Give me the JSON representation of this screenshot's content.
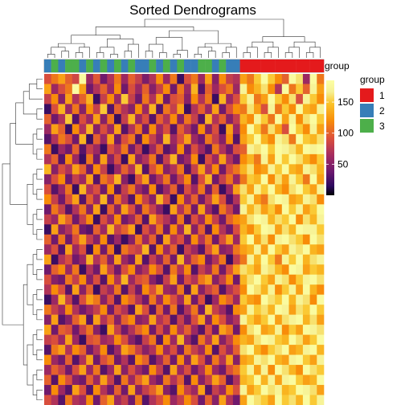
{
  "chart_data": {
    "type": "heatmap",
    "title": "Sorted Dendrograms",
    "n_rows": 33,
    "n_cols": 40,
    "column_annotation": {
      "name": "group",
      "values": [
        2,
        3,
        2,
        3,
        3,
        2,
        3,
        2,
        3,
        2,
        3,
        2,
        3,
        2,
        2,
        3,
        2,
        3,
        2,
        3,
        2,
        2,
        3,
        3,
        2,
        3,
        2,
        2,
        1,
        1,
        1,
        1,
        1,
        1,
        1,
        1,
        1,
        1,
        1,
        1
      ]
    },
    "legend": {
      "title": "group",
      "entries": [
        {
          "label": "1",
          "color": "#e41a1c"
        },
        {
          "label": "2",
          "color": "#377eb8"
        },
        {
          "label": "3",
          "color": "#4daf4a"
        }
      ]
    },
    "colorbar": {
      "ticks": [
        "150",
        "100",
        "50"
      ],
      "tick_values": [
        150,
        100,
        50
      ],
      "range": [
        0,
        185
      ],
      "colormap": "inferno"
    },
    "values": [
      [
        90,
        110,
        130,
        100,
        85,
        180,
        60,
        95,
        40,
        70,
        110,
        60,
        100,
        80,
        45,
        70,
        120,
        60,
        110,
        20,
        90,
        110,
        60,
        130,
        50,
        120,
        80,
        70,
        130,
        110,
        150,
        180,
        150,
        120,
        100,
        180,
        160,
        60,
        180,
        110
      ],
      [
        130,
        60,
        90,
        110,
        180,
        130,
        40,
        70,
        100,
        60,
        120,
        40,
        90,
        60,
        100,
        50,
        80,
        120,
        40,
        110,
        60,
        140,
        30,
        100,
        60,
        90,
        110,
        60,
        170,
        120,
        140,
        160,
        120,
        70,
        180,
        110,
        150,
        100,
        170,
        130
      ],
      [
        80,
        120,
        50,
        130,
        70,
        100,
        140,
        20,
        80,
        120,
        60,
        150,
        80,
        40,
        110,
        70,
        130,
        40,
        90,
        100,
        50,
        120,
        70,
        110,
        20,
        140,
        60,
        90,
        150,
        170,
        110,
        130,
        180,
        150,
        120,
        160,
        90,
        170,
        150,
        120
      ],
      [
        20,
        90,
        140,
        60,
        110,
        50,
        120,
        80,
        150,
        30,
        100,
        70,
        50,
        120,
        60,
        140,
        30,
        110,
        80,
        130,
        20,
        70,
        100,
        60,
        130,
        40,
        90,
        120,
        110,
        160,
        130,
        90,
        170,
        110,
        150,
        120,
        180,
        140,
        130,
        170
      ],
      [
        100,
        40,
        70,
        150,
        30,
        90,
        60,
        130,
        50,
        110,
        20,
        80,
        140,
        60,
        90,
        30,
        100,
        70,
        120,
        50,
        110,
        80,
        30,
        140,
        70,
        100,
        50,
        80,
        140,
        120,
        170,
        150,
        110,
        180,
        130,
        170,
        120,
        160,
        180,
        150
      ],
      [
        60,
        130,
        100,
        20,
        120,
        70,
        140,
        50,
        90,
        60,
        130,
        30,
        70,
        110,
        40,
        120,
        60,
        90,
        30,
        100,
        70,
        40,
        120,
        50,
        90,
        20,
        130,
        60,
        120,
        180,
        150,
        110,
        160,
        130,
        90,
        180,
        150,
        120,
        170,
        130
      ],
      [
        30,
        70,
        110,
        90,
        40,
        140,
        20,
        100,
        60,
        130,
        40,
        90,
        110,
        30,
        120,
        80,
        50,
        140,
        60,
        90,
        130,
        60,
        40,
        110,
        80,
        50,
        120,
        30,
        130,
        150,
        180,
        140,
        120,
        170,
        160,
        110,
        180,
        150,
        140,
        160
      ],
      [
        110,
        20,
        60,
        40,
        100,
        30,
        80,
        60,
        20,
        90,
        70,
        110,
        40,
        80,
        20,
        60,
        100,
        30,
        50,
        120,
        40,
        90,
        60,
        30,
        110,
        70,
        40,
        90,
        100,
        170,
        160,
        180,
        150,
        180,
        170,
        160,
        140,
        180,
        170,
        180
      ],
      [
        70,
        100,
        30,
        120,
        60,
        20,
        110,
        40,
        130,
        50,
        90,
        20,
        130,
        50,
        70,
        110,
        30,
        80,
        140,
        40,
        60,
        120,
        20,
        90,
        60,
        130,
        70,
        40,
        120,
        140,
        110,
        170,
        130,
        180,
        150,
        180,
        160,
        140,
        120,
        150
      ],
      [
        140,
        50,
        90,
        70,
        130,
        100,
        40,
        120,
        80,
        20,
        60,
        100,
        70,
        140,
        30,
        90,
        120,
        50,
        70,
        110,
        30,
        80,
        130,
        70,
        120,
        40,
        90,
        110,
        140,
        160,
        120,
        130,
        170,
        150,
        180,
        140,
        130,
        170,
        160,
        140
      ],
      [
        50,
        90,
        120,
        40,
        80,
        60,
        130,
        30,
        110,
        90,
        140,
        50,
        20,
        90,
        130,
        40,
        70,
        110,
        40,
        80,
        120,
        30,
        90,
        140,
        40,
        80,
        110,
        60,
        110,
        150,
        140,
        180,
        120,
        160,
        130,
        170,
        150,
        110,
        180,
        130
      ],
      [
        90,
        30,
        60,
        110,
        20,
        140,
        70,
        90,
        40,
        120,
        30,
        80,
        110,
        60,
        40,
        120,
        30,
        60,
        100,
        30,
        90,
        60,
        110,
        40,
        100,
        20,
        60,
        130,
        160,
        130,
        170,
        150,
        180,
        140,
        120,
        160,
        180,
        150,
        130,
        170
      ],
      [
        120,
        80,
        40,
        90,
        130,
        30,
        100,
        60,
        140,
        40,
        110,
        70,
        30,
        120,
        80,
        50,
        140,
        90,
        20,
        120,
        60,
        100,
        40,
        80,
        130,
        90,
        30,
        70,
        150,
        170,
        130,
        110,
        160,
        180,
        170,
        130,
        140,
        170,
        160,
        120
      ],
      [
        40,
        110,
        80,
        30,
        70,
        110,
        50,
        130,
        20,
        100,
        50,
        130,
        90,
        40,
        110,
        80,
        50,
        20,
        130,
        70,
        110,
        40,
        130,
        60,
        30,
        110,
        80,
        40,
        170,
        140,
        160,
        130,
        150,
        120,
        180,
        150,
        170,
        130,
        150,
        180
      ],
      [
        80,
        60,
        130,
        100,
        40,
        80,
        120,
        20,
        90,
        60,
        120,
        40,
        60,
        100,
        30,
        130,
        90,
        70,
        40,
        110,
        30,
        90,
        60,
        120,
        80,
        40,
        100,
        120,
        130,
        160,
        180,
        170,
        140,
        160,
        150,
        180,
        120,
        160,
        140,
        170
      ],
      [
        20,
        130,
        50,
        70,
        110,
        40,
        30,
        100,
        60,
        140,
        80,
        100,
        130,
        20,
        90,
        60,
        110,
        40,
        120,
        60,
        140,
        50,
        100,
        30,
        120,
        70,
        40,
        90,
        140,
        120,
        150,
        180,
        170,
        130,
        160,
        140,
        180,
        170,
        170,
        150
      ],
      [
        100,
        40,
        110,
        40,
        90,
        130,
        80,
        50,
        120,
        30,
        60,
        20,
        50,
        110,
        60,
        100,
        30,
        130,
        70,
        90,
        40,
        120,
        70,
        110,
        40,
        90,
        130,
        60,
        150,
        180,
        130,
        160,
        120,
        170,
        180,
        160,
        150,
        120,
        180,
        160
      ],
      [
        60,
        90,
        30,
        130,
        60,
        90,
        20,
        120,
        40,
        110,
        20,
        110,
        90,
        80,
        140,
        30,
        120,
        60,
        100,
        20,
        80,
        60,
        30,
        90,
        130,
        50,
        60,
        110,
        130,
        140,
        170,
        130,
        180,
        150,
        130,
        170,
        160,
        180,
        140,
        130
      ],
      [
        130,
        20,
        70,
        90,
        40,
        60,
        140,
        70,
        100,
        50,
        130,
        60,
        40,
        130,
        30,
        80,
        50,
        100,
        40,
        140,
        60,
        100,
        120,
        40,
        70,
        110,
        20,
        80,
        110,
        170,
        140,
        180,
        150,
        110,
        170,
        150,
        180,
        140,
        160,
        170
      ],
      [
        40,
        100,
        120,
        60,
        110,
        20,
        70,
        40,
        130,
        80,
        40,
        90,
        120,
        50,
        70,
        120,
        90,
        30,
        110,
        70,
        120,
        30,
        80,
        60,
        110,
        40,
        90,
        130,
        160,
        150,
        130,
        170,
        160,
        140,
        120,
        180,
        170,
        130,
        150,
        140
      ],
      [
        90,
        50,
        40,
        110,
        80,
        120,
        50,
        90,
        30,
        120,
        70,
        140,
        60,
        90,
        100,
        50,
        30,
        80,
        130,
        40,
        90,
        70,
        110,
        130,
        50,
        80,
        120,
        40,
        140,
        160,
        180,
        150,
        130,
        170,
        160,
        120,
        150,
        170,
        180,
        160
      ],
      [
        70,
        120,
        90,
        30,
        130,
        50,
        100,
        20,
        80,
        60,
        110,
        30,
        80,
        40,
        120,
        90,
        130,
        60,
        50,
        110,
        30,
        130,
        50,
        80,
        100,
        30,
        70,
        90,
        120,
        180,
        160,
        140,
        170,
        120,
        150,
        170,
        130,
        180,
        140,
        120
      ],
      [
        20,
        60,
        140,
        80,
        30,
        90,
        130,
        110,
        50,
        90,
        30,
        120,
        100,
        70,
        40,
        110,
        60,
        120,
        90,
        60,
        130,
        40,
        90,
        20,
        60,
        120,
        100,
        60,
        150,
        130,
        120,
        180,
        160,
        150,
        180,
        140,
        170,
        160,
        120,
        180
      ],
      [
        110,
        80,
        60,
        120,
        70,
        40,
        60,
        80,
        120,
        40,
        90,
        70,
        30,
        130,
        90,
        30,
        100,
        40,
        110,
        30,
        70,
        110,
        40,
        140,
        80,
        60,
        30,
        120,
        130,
        170,
        150,
        160,
        140,
        180,
        170,
        130,
        160,
        150,
        180,
        150
      ],
      [
        50,
        130,
        30,
        50,
        100,
        130,
        30,
        130,
        70,
        100,
        50,
        100,
        120,
        50,
        60,
        130,
        70,
        90,
        30,
        80,
        40,
        90,
        130,
        50,
        120,
        90,
        50,
        70,
        170,
        150,
        130,
        150,
        180,
        130,
        160,
        170,
        180,
        140,
        160,
        130
      ],
      [
        130,
        40,
        100,
        90,
        40,
        80,
        110,
        50,
        20,
        130,
        80,
        40,
        70,
        100,
        120,
        40,
        90,
        50,
        120,
        70,
        100,
        60,
        30,
        90,
        40,
        130,
        110,
        40,
        120,
        160,
        180,
        130,
        140,
        170,
        120,
        150,
        130,
        180,
        170,
        160
      ],
      [
        80,
        90,
        60,
        130,
        60,
        20,
        90,
        100,
        60,
        70,
        120,
        90,
        50,
        30,
        80,
        110,
        30,
        120,
        60,
        140,
        60,
        30,
        110,
        70,
        130,
        50,
        80,
        120,
        140,
        130,
        160,
        180,
        170,
        150,
        140,
        180,
        160,
        130,
        150,
        180
      ],
      [
        30,
        110,
        130,
        70,
        120,
        100,
        40,
        70,
        120,
        30,
        60,
        130,
        110,
        80,
        50,
        70,
        120,
        60,
        90,
        40,
        110,
        80,
        60,
        120,
        30,
        90,
        60,
        100,
        160,
        180,
        140,
        120,
        150,
        160,
        180,
        130,
        140,
        170,
        180,
        140
      ],
      [
        120,
        60,
        40,
        100,
        30,
        70,
        130,
        40,
        90,
        110,
        40,
        70,
        30,
        120,
        100,
        30,
        60,
        100,
        40,
        120,
        50,
        130,
        90,
        40,
        110,
        70,
        130,
        50,
        130,
        140,
        170,
        160,
        180,
        140,
        130,
        170,
        180,
        150,
        130,
        170
      ],
      [
        60,
        100,
        80,
        40,
        90,
        130,
        60,
        110,
        30,
        60,
        130,
        50,
        90,
        60,
        40,
        120,
        80,
        30,
        130,
        60,
        90,
        40,
        70,
        120,
        60,
        40,
        90,
        110,
        150,
        170,
        130,
        170,
        120,
        180,
        160,
        140,
        120,
        180,
        160,
        150
      ],
      [
        100,
        30,
        120,
        90,
        50,
        40,
        100,
        60,
        130,
        80,
        30,
        110,
        60,
        100,
        130,
        60,
        40,
        110,
        70,
        100,
        30,
        120,
        50,
        80,
        130,
        100,
        30,
        70,
        140,
        150,
        180,
        140,
        170,
        130,
        170,
        180,
        150,
        130,
        140,
        180
      ],
      [
        40,
        120,
        60,
        30,
        130,
        90,
        30,
        120,
        70,
        40,
        100,
        40,
        130,
        50,
        80,
        100,
        130,
        50,
        30,
        120,
        80,
        60,
        130,
        30,
        80,
        60,
        120,
        90,
        170,
        130,
        150,
        180,
        160,
        170,
        140,
        150,
        180,
        170,
        160,
        130
      ],
      [
        90,
        70,
        30,
        110,
        70,
        60,
        120,
        40,
        100,
        130,
        60,
        80,
        40,
        110,
        30,
        70,
        90,
        120,
        60,
        80,
        120,
        90,
        40,
        100,
        50,
        130,
        70,
        40,
        130,
        180,
        160,
        150,
        130,
        180,
        150,
        160,
        140,
        180,
        150,
        170
      ]
    ]
  }
}
